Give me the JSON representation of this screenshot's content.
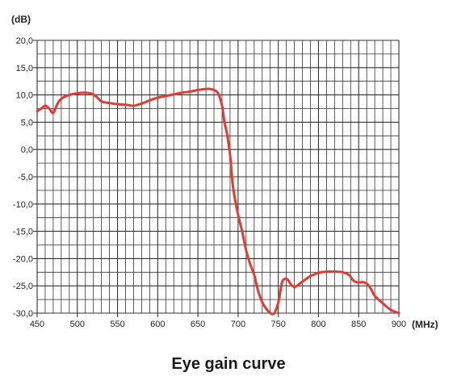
{
  "chart_data": {
    "type": "line",
    "title": "Eye gain curve",
    "ylabel": "(dB)",
    "xlabel": "(MHz)",
    "xlim": [
      450,
      900
    ],
    "ylim": [
      -30,
      20
    ],
    "grid": true,
    "x_ticks": [
      450,
      500,
      550,
      600,
      650,
      700,
      750,
      800,
      850,
      900
    ],
    "x_tick_labels": [
      "450",
      "500",
      "550",
      "600",
      "650",
      "700",
      "750",
      "800",
      "850",
      "900"
    ],
    "y_ticks": [
      20,
      15,
      10,
      5,
      0,
      -5,
      -10,
      -15,
      -20,
      -25,
      -30
    ],
    "y_tick_labels": [
      "20,0",
      "15,0",
      "10,0",
      "5,0",
      "0,0",
      "-5,0",
      "-10,0",
      "-15,0",
      "-20,0",
      "-25,0",
      "-30,0"
    ],
    "line_color": "#e53a32",
    "series": [
      {
        "x": [
          450,
          455,
          460,
          465,
          470,
          475,
          480,
          490,
          500,
          510,
          518,
          525,
          530,
          540,
          550,
          560,
          570,
          575,
          580,
          590,
          600,
          610,
          620,
          630,
          640,
          650,
          660,
          665,
          670,
          675,
          680,
          683,
          686,
          690,
          693,
          696,
          700,
          705,
          710,
          715,
          720,
          725,
          730,
          735,
          740,
          745,
          750,
          753,
          755,
          758,
          762,
          766,
          770,
          775,
          780,
          785,
          790,
          795,
          800,
          810,
          820,
          830,
          838,
          842,
          845,
          850,
          855,
          860,
          865,
          870,
          880,
          890,
          900
        ],
        "y": [
          7.0,
          7.5,
          8.0,
          7.5,
          6.7,
          8.3,
          9.3,
          10.0,
          10.3,
          10.4,
          10.2,
          9.5,
          8.8,
          8.5,
          8.3,
          8.2,
          8.0,
          8.2,
          8.4,
          9.0,
          9.5,
          9.8,
          10.1,
          10.4,
          10.6,
          10.9,
          11.1,
          11.1,
          10.9,
          10.3,
          8.0,
          5.0,
          3.0,
          -1.0,
          -6.0,
          -9.0,
          -12.0,
          -15.0,
          -18.5,
          -21.0,
          -23.0,
          -26.0,
          -28.0,
          -29.2,
          -30.0,
          -30.0,
          -28.0,
          -25.5,
          -24.2,
          -23.7,
          -23.9,
          -24.8,
          -25.2,
          -24.8,
          -24.2,
          -23.7,
          -23.2,
          -22.9,
          -22.6,
          -22.4,
          -22.4,
          -22.5,
          -23.0,
          -23.8,
          -24.2,
          -24.4,
          -24.3,
          -24.6,
          -25.5,
          -26.8,
          -28.2,
          -29.4,
          -30.0
        ]
      }
    ]
  }
}
